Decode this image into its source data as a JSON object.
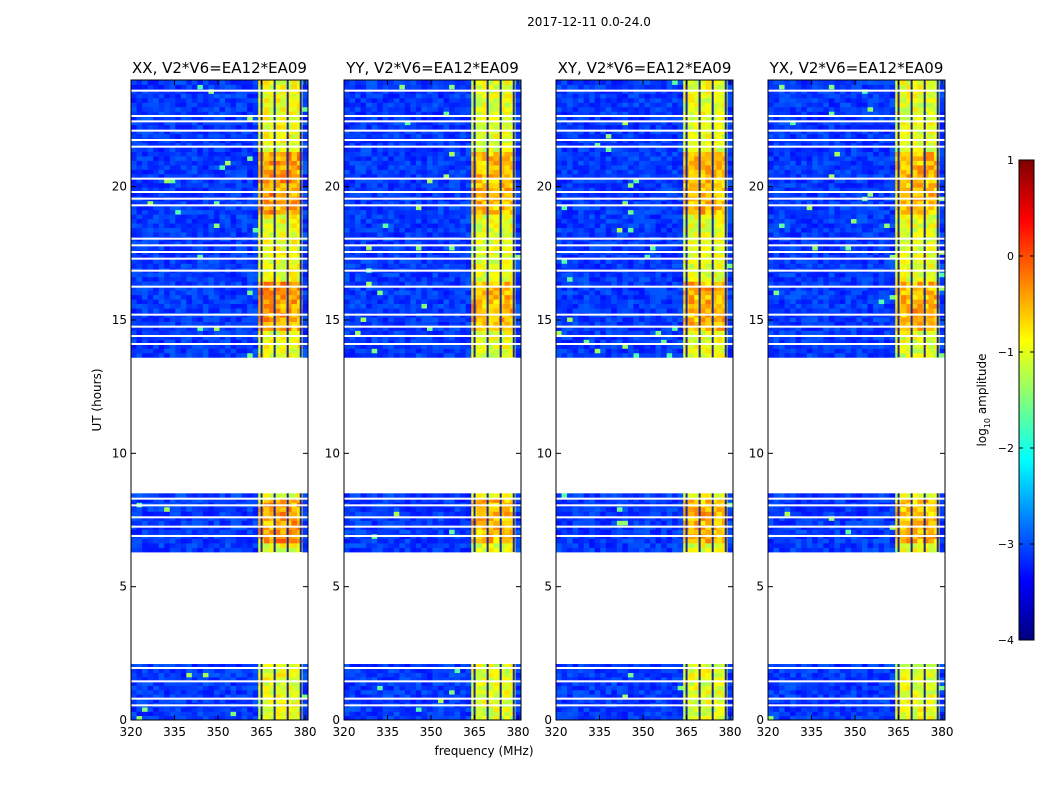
{
  "figure_title": "2017-12-11 0.0-24.0",
  "xlabel": "frequency (MHz)",
  "ylabel": "UT (hours)",
  "colorbar": {
    "label_prefix": "log",
    "label_sub": "10",
    "label_suffix": " amplitude",
    "ticks": [
      1,
      0,
      -1,
      -2,
      -3,
      -4
    ],
    "range": [
      -4,
      1
    ],
    "colors": [
      "#00007f",
      "#0000ff",
      "#007fff",
      "#00ffff",
      "#7fff7f",
      "#ffff00",
      "#ff7f00",
      "#ff0000",
      "#7f0000"
    ]
  },
  "chart_data": [
    {
      "type": "heatmap",
      "title": "XX, V2*V6=EA12*EA09",
      "xlim": [
        320,
        381
      ],
      "ylim": [
        0,
        24
      ],
      "xticks": [
        320,
        335,
        350,
        365,
        380
      ],
      "yticks": [
        0,
        5,
        10,
        15,
        20
      ],
      "high_band_intensity": 1.0
    },
    {
      "type": "heatmap",
      "title": "YY, V2*V6=EA12*EA09",
      "xlim": [
        320,
        381
      ],
      "ylim": [
        0,
        24
      ],
      "xticks": [
        320,
        335,
        350,
        365,
        380
      ],
      "yticks": [
        0,
        5,
        10,
        15,
        20
      ],
      "high_band_intensity": 0.82
    },
    {
      "type": "heatmap",
      "title": "XY, V2*V6=EA12*EA09",
      "xlim": [
        320,
        381
      ],
      "ylim": [
        0,
        24
      ],
      "xticks": [
        320,
        335,
        350,
        365,
        380
      ],
      "yticks": [
        0,
        5,
        10,
        15,
        20
      ],
      "high_band_intensity": 0.85
    },
    {
      "type": "heatmap",
      "title": "YX, V2*V6=EA12*EA09",
      "xlim": [
        320,
        381
      ],
      "ylim": [
        0,
        24
      ],
      "xticks": [
        320,
        335,
        350,
        365,
        380
      ],
      "yticks": [
        0,
        5,
        10,
        15,
        20
      ],
      "high_band_intensity": 0.82
    }
  ],
  "data_segments_ut_hours": [
    [
      0,
      2.1
    ],
    [
      6.3,
      8.5
    ],
    [
      13.6,
      24.0
    ]
  ],
  "flagged_ut_hours": [
    0.55,
    0.8,
    1.45,
    1.95,
    6.9,
    7.25,
    7.6,
    8.05,
    8.3,
    14.1,
    14.4,
    14.75,
    15.2,
    16.25,
    16.85,
    17.3,
    17.55,
    17.8,
    18.05,
    19.3,
    19.55,
    19.8,
    20.3,
    21.5,
    21.75,
    22.1,
    22.45,
    22.65,
    23.6
  ],
  "high_amplitude_band_mhz": [
    364,
    380
  ],
  "channel_dividers_mhz": [
    365,
    369.5,
    374,
    378.5
  ]
}
